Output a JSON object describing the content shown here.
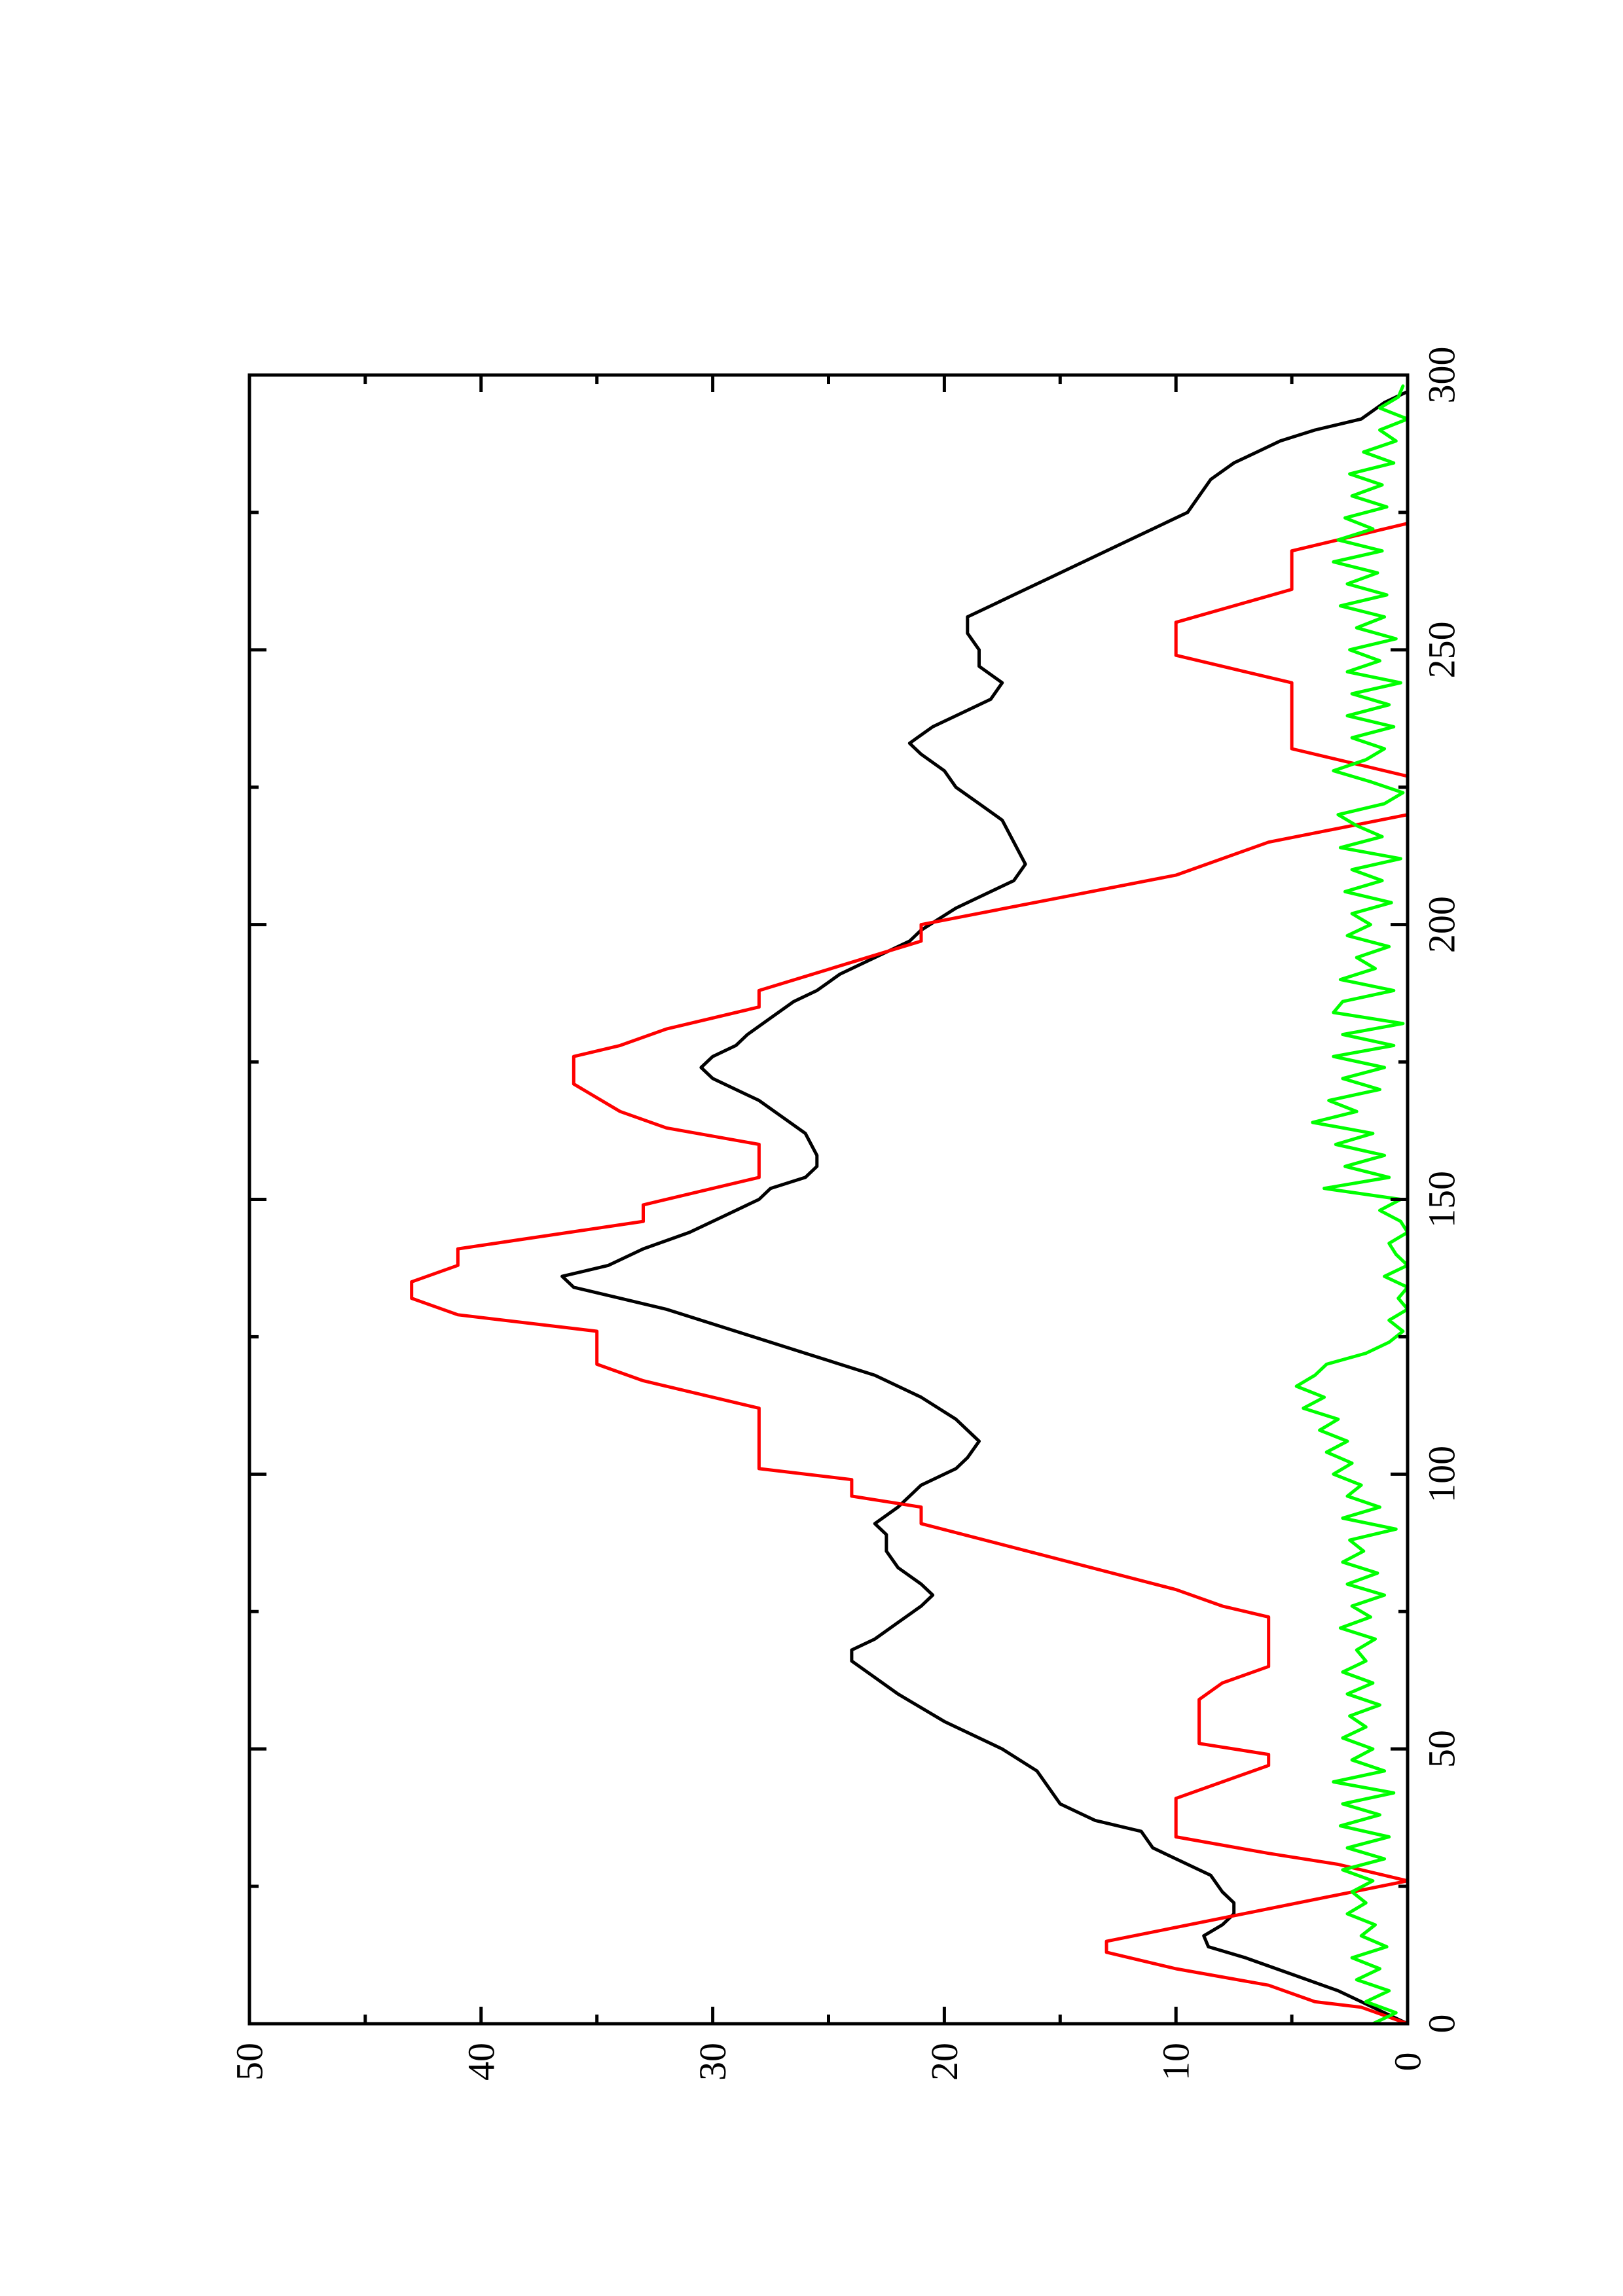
{
  "chart_data": {
    "type": "line",
    "orientation": "rotated-90-ccw",
    "title": "",
    "xlabel": "",
    "ylabel": "",
    "xlim": [
      0,
      300
    ],
    "ylim": [
      0,
      50
    ],
    "x_ticks": [
      0,
      50,
      100,
      150,
      200,
      250,
      300
    ],
    "y_ticks": [
      0,
      10,
      20,
      30,
      40,
      50
    ],
    "grid": false,
    "legend": "none",
    "series": [
      {
        "color": "#000000",
        "points": [
          [
            0,
            0
          ],
          [
            2,
            1
          ],
          [
            4,
            2
          ],
          [
            6,
            3
          ],
          [
            9,
            5
          ],
          [
            12,
            7
          ],
          [
            14,
            8.6
          ],
          [
            16,
            8.8
          ],
          [
            18,
            8
          ],
          [
            20,
            7.5
          ],
          [
            22,
            7.5
          ],
          [
            24,
            8
          ],
          [
            27,
            8.5
          ],
          [
            30,
            10
          ],
          [
            32,
            11
          ],
          [
            35,
            11.5
          ],
          [
            37,
            13.5
          ],
          [
            40,
            15
          ],
          [
            43,
            15.5
          ],
          [
            46,
            16
          ],
          [
            50,
            17.5
          ],
          [
            55,
            20
          ],
          [
            60,
            22
          ],
          [
            63,
            23
          ],
          [
            66,
            24
          ],
          [
            68,
            24
          ],
          [
            70,
            23
          ],
          [
            73,
            22
          ],
          [
            76,
            21
          ],
          [
            78,
            20.5
          ],
          [
            80,
            21
          ],
          [
            83,
            22
          ],
          [
            86,
            22.5
          ],
          [
            89,
            22.5
          ],
          [
            91,
            23
          ],
          [
            94,
            22
          ],
          [
            96,
            21.5
          ],
          [
            98,
            21
          ],
          [
            101,
            19.5
          ],
          [
            103,
            19
          ],
          [
            106,
            18.5
          ],
          [
            110,
            19.5
          ],
          [
            114,
            21
          ],
          [
            118,
            23
          ],
          [
            122,
            26
          ],
          [
            126,
            29
          ],
          [
            130,
            32
          ],
          [
            132,
            34
          ],
          [
            134,
            36
          ],
          [
            136,
            36.5
          ],
          [
            138,
            34.5
          ],
          [
            141,
            33
          ],
          [
            144,
            31
          ],
          [
            147,
            29.5
          ],
          [
            150,
            28
          ],
          [
            152,
            27.5
          ],
          [
            154,
            26
          ],
          [
            156,
            25.5
          ],
          [
            158,
            25.5
          ],
          [
            162,
            26
          ],
          [
            165,
            27
          ],
          [
            168,
            28
          ],
          [
            170,
            29
          ],
          [
            172,
            30
          ],
          [
            174,
            30.5
          ],
          [
            176,
            30
          ],
          [
            178,
            29
          ],
          [
            180,
            28.5
          ],
          [
            183,
            27.5
          ],
          [
            186,
            26.5
          ],
          [
            188,
            25.5
          ],
          [
            191,
            24.5
          ],
          [
            194,
            23
          ],
          [
            197,
            21.5
          ],
          [
            199,
            21
          ],
          [
            203,
            19.5
          ],
          [
            206,
            18
          ],
          [
            208,
            17
          ],
          [
            211,
            16.5
          ],
          [
            215,
            17
          ],
          [
            219,
            17.5
          ],
          [
            222,
            18.5
          ],
          [
            225,
            19.5
          ],
          [
            228,
            20
          ],
          [
            231,
            21
          ],
          [
            233,
            21.5
          ],
          [
            236,
            20.5
          ],
          [
            238,
            19.5
          ],
          [
            241,
            18
          ],
          [
            244,
            17.5
          ],
          [
            247,
            18.5
          ],
          [
            250,
            18.5
          ],
          [
            253,
            19
          ],
          [
            256,
            19
          ],
          [
            258,
            18
          ],
          [
            260,
            17
          ],
          [
            263,
            15.5
          ],
          [
            266,
            14
          ],
          [
            269,
            12.5
          ],
          [
            272,
            11
          ],
          [
            275,
            9.5
          ],
          [
            278,
            9
          ],
          [
            281,
            8.5
          ],
          [
            284,
            7.5
          ],
          [
            286,
            6.5
          ],
          [
            288,
            5.5
          ],
          [
            290,
            4
          ],
          [
            292,
            2
          ],
          [
            295,
            1
          ],
          [
            297,
            0
          ]
        ]
      },
      {
        "color": "#ff0000",
        "points": [
          [
            0,
            0
          ],
          [
            3,
            2
          ],
          [
            4,
            4
          ],
          [
            7,
            6
          ],
          [
            10,
            10
          ],
          [
            13,
            13
          ],
          [
            15,
            13
          ],
          [
            26,
            0
          ],
          [
            29,
            3
          ],
          [
            31,
            6
          ],
          [
            34,
            10
          ],
          [
            41,
            10
          ],
          [
            44,
            8
          ],
          [
            47,
            6
          ],
          [
            49,
            6
          ],
          [
            51,
            9
          ],
          [
            54,
            9
          ],
          [
            59,
            9
          ],
          [
            62,
            8
          ],
          [
            65,
            6
          ],
          [
            74,
            6
          ],
          [
            76,
            8
          ],
          [
            79,
            10
          ],
          [
            91,
            21
          ],
          [
            94,
            21
          ],
          [
            96,
            24
          ],
          [
            99,
            24
          ],
          [
            101,
            28
          ],
          [
            112,
            28
          ],
          [
            117,
            33
          ],
          [
            120,
            35
          ],
          [
            126,
            35
          ],
          [
            129,
            41
          ],
          [
            132,
            43
          ],
          [
            135,
            43
          ],
          [
            138,
            41
          ],
          [
            141,
            41
          ],
          [
            146,
            33
          ],
          [
            149,
            33
          ],
          [
            154,
            28
          ],
          [
            160,
            28
          ],
          [
            163,
            32
          ],
          [
            166,
            34
          ],
          [
            171,
            36
          ],
          [
            176,
            36
          ],
          [
            178,
            34
          ],
          [
            181,
            32
          ],
          [
            185,
            28
          ],
          [
            188,
            28
          ],
          [
            197,
            21
          ],
          [
            200,
            21
          ],
          [
            209,
            10
          ],
          [
            215,
            6
          ],
          [
            220,
            0
          ],
          [
            227,
            0
          ],
          [
            232,
            5
          ],
          [
            244,
            5
          ],
          [
            249,
            10
          ],
          [
            255,
            10
          ],
          [
            261,
            5
          ],
          [
            268,
            5
          ],
          [
            273,
            0
          ]
        ]
      },
      {
        "color": "#00ff00",
        "points": [
          [
            0,
            1.5
          ],
          [
            2,
            0.5
          ],
          [
            4,
            1.8
          ],
          [
            6,
            0.8
          ],
          [
            8,
            2.2
          ],
          [
            10,
            1.2
          ],
          [
            12,
            2.4
          ],
          [
            14,
            0.9
          ],
          [
            16,
            2
          ],
          [
            18,
            1.4
          ],
          [
            20,
            2.6
          ],
          [
            22,
            1.8
          ],
          [
            24,
            2.4
          ],
          [
            26,
            1.5
          ],
          [
            28,
            2.8
          ],
          [
            30,
            1
          ],
          [
            32,
            2.6
          ],
          [
            34,
            0.8
          ],
          [
            36,
            2.9
          ],
          [
            38,
            1.2
          ],
          [
            40,
            2.8
          ],
          [
            42,
            0.6
          ],
          [
            44,
            3.2
          ],
          [
            46,
            1
          ],
          [
            48,
            2.4
          ],
          [
            50,
            1.5
          ],
          [
            52,
            2.8
          ],
          [
            54,
            1.8
          ],
          [
            56,
            2.5
          ],
          [
            58,
            1.2
          ],
          [
            60,
            2.6
          ],
          [
            62,
            1.5
          ],
          [
            64,
            2.8
          ],
          [
            66,
            1.8
          ],
          [
            68,
            2.2
          ],
          [
            70,
            1.4
          ],
          [
            72,
            2.9
          ],
          [
            74,
            1.6
          ],
          [
            76,
            2.4
          ],
          [
            78,
            1
          ],
          [
            80,
            2.6
          ],
          [
            82,
            1.3
          ],
          [
            84,
            2.8
          ],
          [
            86,
            1.9
          ],
          [
            88,
            2.5
          ],
          [
            90,
            0.5
          ],
          [
            92,
            2.8
          ],
          [
            94,
            1.2
          ],
          [
            96,
            2.6
          ],
          [
            98,
            2
          ],
          [
            100,
            3.2
          ],
          [
            102,
            2.4
          ],
          [
            104,
            3.5
          ],
          [
            106,
            2.6
          ],
          [
            108,
            3.8
          ],
          [
            110,
            3
          ],
          [
            112,
            4.5
          ],
          [
            114,
            3.6
          ],
          [
            116,
            4.8
          ],
          [
            118,
            4
          ],
          [
            120,
            3.5
          ],
          [
            122,
            1.8
          ],
          [
            124,
            0.8
          ],
          [
            126,
            0.2
          ],
          [
            128,
            0.8
          ],
          [
            130,
            0
          ],
          [
            132,
            0.4
          ],
          [
            134,
            0
          ],
          [
            136,
            1
          ],
          [
            138,
            0
          ],
          [
            140,
            0.5
          ],
          [
            142,
            0.8
          ],
          [
            144,
            0
          ],
          [
            146,
            0.3
          ],
          [
            148,
            1.2
          ],
          [
            150,
            0.3
          ],
          [
            152,
            3.6
          ],
          [
            154,
            0.8
          ],
          [
            156,
            2.7
          ],
          [
            158,
            1
          ],
          [
            160,
            3.1
          ],
          [
            162,
            1.5
          ],
          [
            164,
            4.1
          ],
          [
            166,
            2.2
          ],
          [
            168,
            3.4
          ],
          [
            170,
            1.2
          ],
          [
            172,
            2.8
          ],
          [
            174,
            1
          ],
          [
            176,
            3.2
          ],
          [
            178,
            0.6
          ],
          [
            180,
            2.8
          ],
          [
            182,
            0.2
          ],
          [
            184,
            3.2
          ],
          [
            186,
            2.8
          ],
          [
            188,
            0.6
          ],
          [
            190,
            2.9
          ],
          [
            192,
            1.4
          ],
          [
            194,
            2.2
          ],
          [
            196,
            0.8
          ],
          [
            198,
            2.6
          ],
          [
            200,
            1.6
          ],
          [
            202,
            2.4
          ],
          [
            204,
            0.7
          ],
          [
            206,
            2.7
          ],
          [
            208,
            1.1
          ],
          [
            210,
            2.4
          ],
          [
            212,
            0.3
          ],
          [
            214,
            2.9
          ],
          [
            216,
            1.1
          ],
          [
            218,
            2.2
          ],
          [
            220,
            3
          ],
          [
            222,
            1
          ],
          [
            224,
            0.2
          ],
          [
            226,
            1.6
          ],
          [
            228,
            3.2
          ],
          [
            230,
            1.8
          ],
          [
            232,
            1
          ],
          [
            234,
            2.4
          ],
          [
            236,
            0.6
          ],
          [
            238,
            2.6
          ],
          [
            240,
            0.8
          ],
          [
            242,
            2.4
          ],
          [
            244,
            0.3
          ],
          [
            246,
            2.6
          ],
          [
            248,
            1.2
          ],
          [
            250,
            2.5
          ],
          [
            252,
            0.5
          ],
          [
            254,
            2.2
          ],
          [
            256,
            1
          ],
          [
            258,
            2.9
          ],
          [
            260,
            0.9
          ],
          [
            262,
            2.6
          ],
          [
            264,
            1.3
          ],
          [
            266,
            3.2
          ],
          [
            268,
            1.1
          ],
          [
            270,
            3
          ],
          [
            272,
            1.5
          ],
          [
            274,
            2.7
          ],
          [
            276,
            0.9
          ],
          [
            278,
            2.4
          ],
          [
            280,
            1.1
          ],
          [
            282,
            2.5
          ],
          [
            284,
            0.6
          ],
          [
            286,
            1.9
          ],
          [
            288,
            0.5
          ],
          [
            290,
            1.2
          ],
          [
            292,
            0
          ],
          [
            294,
            1.2
          ],
          [
            296,
            0.4
          ],
          [
            298,
            0.2
          ]
        ]
      }
    ]
  }
}
